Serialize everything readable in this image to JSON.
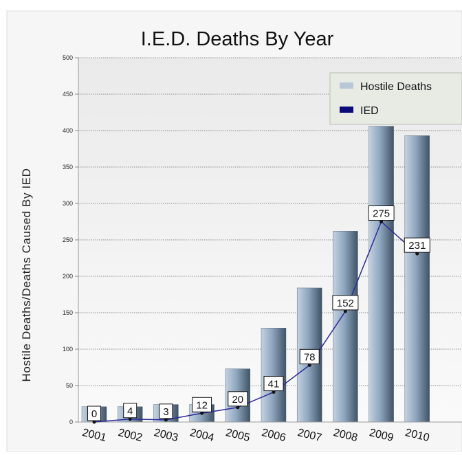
{
  "chart_data": {
    "type": "bar",
    "title": "I.E.D. Deaths By Year",
    "xlabel": "",
    "ylabel": "Hostile Deaths/Deaths Caused By IED",
    "categories": [
      "2001",
      "2002",
      "2003",
      "2004",
      "2005",
      "2006",
      "2007",
      "2008",
      "2009",
      "2010"
    ],
    "ylim": [
      0,
      500
    ],
    "yticks": [
      0,
      50,
      100,
      150,
      200,
      250,
      300,
      350,
      400,
      450,
      500
    ],
    "grid": true,
    "legend_position": "top-right",
    "series": [
      {
        "name": "Hostile Deaths",
        "kind": "bar",
        "color": "#8aa3bd",
        "values": [
          21,
          21,
          24,
          24,
          73,
          129,
          184,
          262,
          406,
          393
        ]
      },
      {
        "name": "IED",
        "kind": "line",
        "color": "#1a1a8c",
        "values": [
          0,
          4,
          3,
          12,
          20,
          41,
          78,
          152,
          275,
          231
        ],
        "data_labels": [
          "0",
          "4",
          "3",
          "12",
          "20",
          "41",
          "78",
          "152",
          "275",
          "231"
        ]
      }
    ]
  }
}
